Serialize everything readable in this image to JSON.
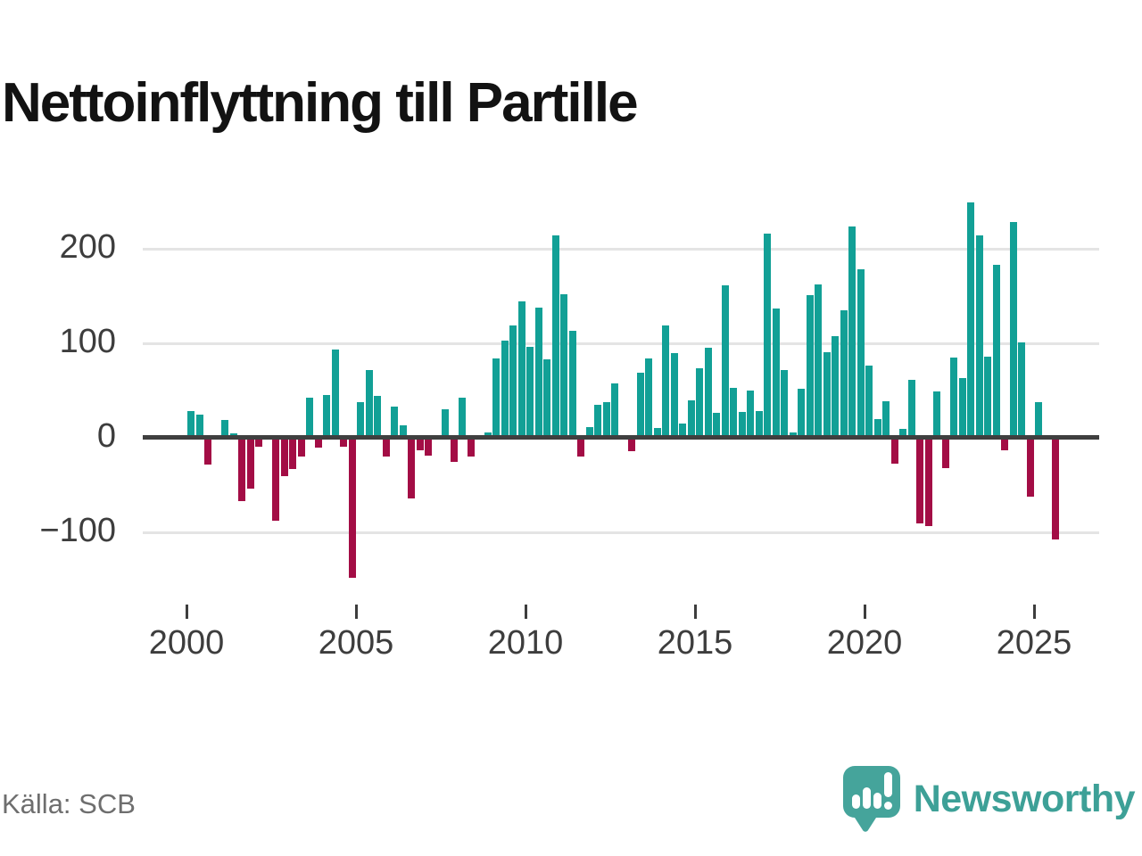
{
  "title": "Nettoinflyttning till Partille",
  "source_label": "Källa: SCB",
  "brand": {
    "name": "Newsworthy"
  },
  "colors": {
    "positive": "#12a096",
    "negative": "#a30d45",
    "axis_line": "#3f3f3f",
    "gridline": "#e4e4e4",
    "tick_text": "#3d3d3d",
    "brand_teal": "#3da097"
  },
  "chart_data": {
    "type": "bar",
    "title": "Nettoinflyttning till Partille",
    "frequency": "quarterly",
    "x_start": "2000-Q1",
    "x_end": "2025-Q3",
    "values": [
      28,
      25,
      -28,
      0,
      19,
      5,
      -67,
      -54,
      -9,
      3,
      -88,
      -41,
      -33,
      -20,
      42,
      -10,
      45,
      93,
      -9,
      -148,
      38,
      72,
      44,
      -20,
      33,
      13,
      -64,
      -13,
      -19,
      0,
      30,
      -25,
      42,
      -20,
      2,
      6,
      84,
      103,
      119,
      144,
      96,
      138,
      83,
      214,
      152,
      113,
      -20,
      11,
      35,
      38,
      58,
      0,
      -14,
      69,
      84,
      10,
      119,
      90,
      15,
      40,
      74,
      95,
      26,
      161,
      53,
      27,
      50,
      28,
      216,
      137,
      72,
      6,
      52,
      151,
      162,
      91,
      108,
      135,
      224,
      178,
      76,
      20,
      39,
      -27,
      9,
      61,
      -91,
      -93,
      49,
      -32,
      85,
      63,
      249,
      214,
      86,
      183,
      -13,
      228,
      101,
      -62,
      38,
      0,
      -108
    ],
    "x_tick_labels": [
      "2000",
      "2005",
      "2010",
      "2015",
      "2020",
      "2025"
    ],
    "y_tick_labels": [
      "200",
      "100",
      "0",
      "−100"
    ],
    "y_tick_values": [
      200,
      100,
      0,
      -100
    ],
    "ylim": [
      -160,
      260
    ],
    "grid": "horizontal",
    "legend": "none",
    "positive_color": "#12a096",
    "negative_color": "#a30d45"
  }
}
